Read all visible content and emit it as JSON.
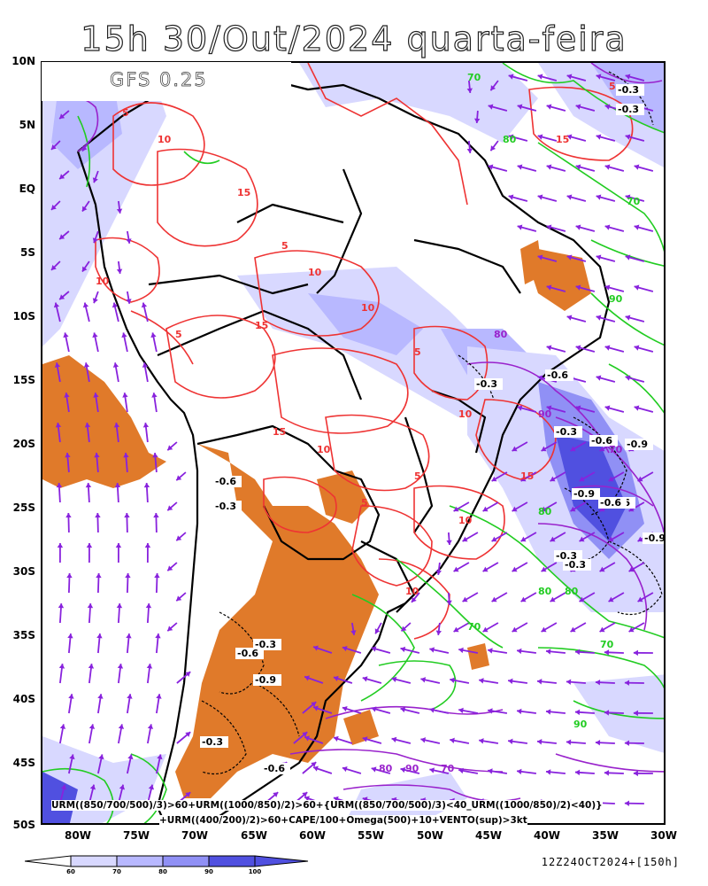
{
  "title": "15h 30/Out/2024 quarta-feira",
  "model_label": "GFS 0.25",
  "lat_labels": [
    "10N",
    "5N",
    "EQ",
    "5S",
    "10S",
    "15S",
    "20S",
    "25S",
    "30S",
    "35S",
    "40S",
    "45S",
    "50S"
  ],
  "lon_labels": [
    "80W",
    "75W",
    "70W",
    "65W",
    "60W",
    "55W",
    "50W",
    "45W",
    "40W",
    "35W",
    "30W"
  ],
  "formula_line1": "URM((850/700/500)/3)>60+URM((1000/850)/2)>60+{URM((850/700/500)/3)<40_URM((1000/850)/2)<40)}",
  "formula_line2": "+URM((400/200)/2)>60+CAPE/100+Omega(500)+10+VENTO(sup)>3kt",
  "colorbar_ticks": [
    "60",
    "70",
    "80",
    "90",
    "100"
  ],
  "colorbar_colors": [
    "#ffffff",
    "#d8d8ff",
    "#b8b8ff",
    "#9090f5",
    "#5050e0"
  ],
  "run_info": "12Z24OCT2024+[150h]",
  "colors": {
    "cape_red": "#ee3333",
    "humidity_green": "#22cc22",
    "humidity_purple": "#9922cc",
    "omega_fill": "#e07a2a",
    "wind_arrow": "#8822dd",
    "coast": "#000000"
  },
  "contour_labels": {
    "cape": [
      "5",
      "10",
      "15",
      "5",
      "10",
      "15",
      "5",
      "10",
      "5",
      "10",
      "15",
      "10",
      "5",
      "15",
      "10",
      "5",
      "10",
      "15",
      "5",
      "10"
    ],
    "omega": [
      "-0.3",
      "-0.3",
      "-0.6",
      "-0.3",
      "-0.6",
      "-0.9",
      "-0.3",
      "-0.6",
      "-0.3",
      "-0.9",
      "-0.6",
      "-0.3",
      "-0.6",
      "-0.9",
      "-0.3",
      "-0.3",
      "-0.6",
      "-0.9",
      "-0.3",
      "-0.6"
    ],
    "humidity_green": [
      "70",
      "80",
      "90",
      "70",
      "80",
      "70",
      "90",
      "80",
      "70",
      "80"
    ],
    "humidity_purple": [
      "80",
      "90",
      "70",
      "80",
      "90",
      "70"
    ]
  }
}
